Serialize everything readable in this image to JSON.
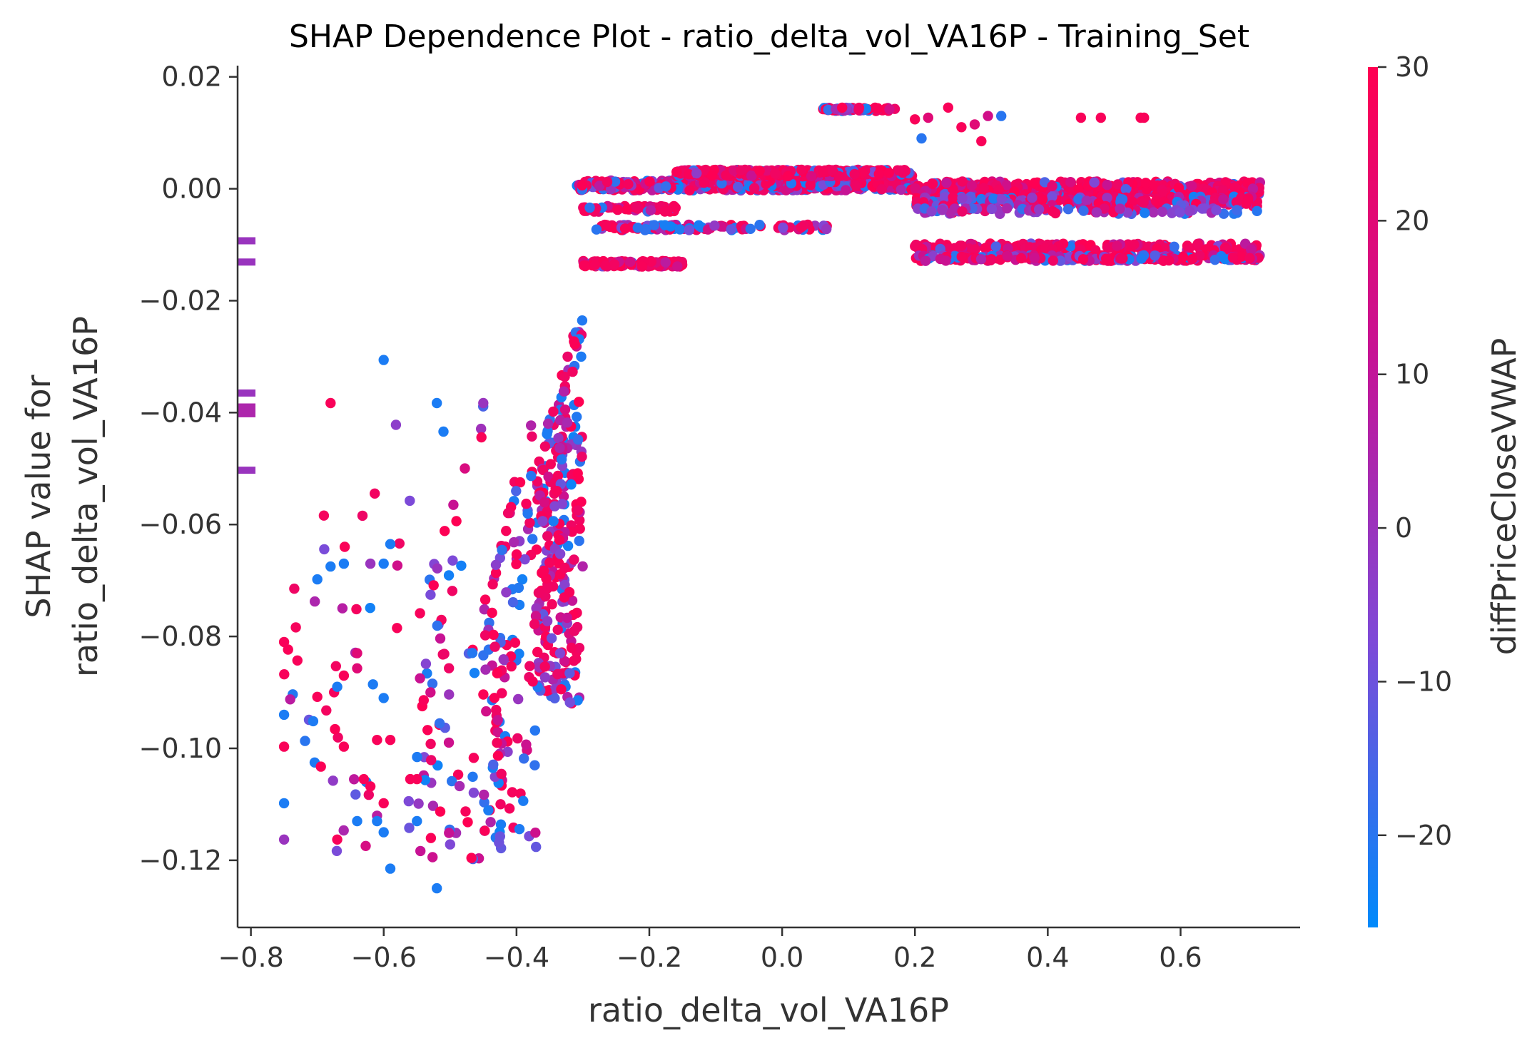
{
  "chart_data": {
    "type": "scatter",
    "title": "SHAP Dependence Plot - ratio_delta_vol_VA16P - Training_Set",
    "xlabel": "ratio_delta_vol_VA16P",
    "ylabel_lines": [
      "SHAP value for",
      "ratio_delta_vol_VA16P"
    ],
    "colorbar_label": "diffPriceCloseVWAP",
    "xlim": [
      -0.82,
      0.78
    ],
    "ylim": [
      -0.132,
      0.022
    ],
    "x_ticks": [
      -0.8,
      -0.6,
      -0.4,
      -0.2,
      0.0,
      0.2,
      0.4,
      0.6
    ],
    "x_tick_labels": [
      "−0.8",
      "−0.6",
      "−0.4",
      "−0.2",
      "0.0",
      "0.2",
      "0.4",
      "0.6"
    ],
    "y_ticks": [
      0.02,
      0.0,
      -0.02,
      -0.04,
      -0.06,
      -0.08,
      -0.1,
      -0.12
    ],
    "y_tick_labels": [
      "0.02",
      "0.00",
      "−0.02",
      "−0.04",
      "−0.06",
      "−0.08",
      "−0.10",
      "−0.12"
    ],
    "color_range": [
      -26,
      30
    ],
    "color_ticks": [
      30,
      20,
      10,
      0,
      -10,
      -20
    ],
    "color_tick_labels": [
      "30",
      "20",
      "10",
      "0",
      "−10",
      "−20"
    ],
    "colormap": [
      "#008afb",
      "#7d4ad8",
      "#c51396",
      "#ff0052"
    ],
    "nan_markers": [
      {
        "y": -0.0093,
        "color": 0
      },
      {
        "y": -0.0131,
        "color": 0
      },
      {
        "y": -0.0365,
        "color": 0
      },
      {
        "y": -0.039,
        "color": 5
      },
      {
        "y": -0.0402,
        "color": 5
      },
      {
        "y": -0.0503,
        "color": 0
      }
    ],
    "clusters": [
      {
        "x": [
          -0.31,
          0.2
        ],
        "y": 0.0006,
        "n": 520,
        "yspread": 0.0009,
        "colors": "mixed"
      },
      {
        "x": [
          -0.16,
          0.2
        ],
        "y": 0.0028,
        "n": 320,
        "yspread": 0.0006,
        "colors": "red"
      },
      {
        "x": [
          0.2,
          0.72
        ],
        "y": 0.0001,
        "n": 380,
        "yspread": 0.0012,
        "colors": "red"
      },
      {
        "x": [
          0.2,
          0.72
        ],
        "y": -0.0023,
        "n": 260,
        "yspread": 0.0009,
        "colors": "mixed"
      },
      {
        "x": [
          0.2,
          0.72
        ],
        "y": -0.004,
        "n": 80,
        "yspread": 0.0005,
        "colors": "purple"
      },
      {
        "x": [
          0.2,
          0.72
        ],
        "y": -0.0104,
        "n": 170,
        "yspread": 0.0006,
        "colors": "red"
      },
      {
        "x": [
          0.2,
          0.72
        ],
        "y": -0.0124,
        "n": 230,
        "yspread": 0.0005,
        "colors": "mixed"
      },
      {
        "x": [
          0.06,
          0.17
        ],
        "y": 0.0142,
        "n": 55,
        "yspread": 0.0003,
        "colors": "mixed"
      },
      {
        "x": [
          -0.3,
          -0.16
        ],
        "y": -0.0036,
        "n": 60,
        "yspread": 0.0005,
        "colors": "red"
      },
      {
        "x": [
          -0.28,
          0.07
        ],
        "y": -0.0069,
        "n": 110,
        "yspread": 0.0005,
        "colors": "mixed"
      },
      {
        "x": [
          -0.3,
          -0.15
        ],
        "y": -0.0134,
        "n": 110,
        "yspread": 0.0005,
        "colors": "red"
      },
      {
        "x": [
          -0.37,
          -0.3
        ],
        "y": [
          -0.092,
          -0.016
        ],
        "n": 260,
        "colors": "mixed"
      },
      {
        "x": [
          -0.45,
          -0.37
        ],
        "y": [
          -0.118,
          -0.036
        ],
        "n": 130,
        "colors": "mixed"
      },
      {
        "x": [
          -0.55,
          -0.45
        ],
        "y": [
          -0.12,
          -0.038
        ],
        "n": 70,
        "colors": "mixed"
      },
      {
        "x": [
          -0.76,
          -0.55
        ],
        "y": [
          -0.122,
          -0.03
        ],
        "n": 42,
        "colors": "mixed"
      }
    ],
    "points": [
      {
        "x": 0.25,
        "y": 0.0145,
        "c": 28
      },
      {
        "x": 0.31,
        "y": 0.013,
        "c": 15
      },
      {
        "x": 0.33,
        "y": 0.013,
        "c": -20
      },
      {
        "x": 0.27,
        "y": 0.011,
        "c": 28
      },
      {
        "x": 0.29,
        "y": 0.0115,
        "c": 20
      },
      {
        "x": 0.3,
        "y": 0.0085,
        "c": 28
      },
      {
        "x": 0.21,
        "y": 0.009,
        "c": -20
      },
      {
        "x": 0.45,
        "y": 0.0127,
        "c": 28
      },
      {
        "x": 0.48,
        "y": 0.0127,
        "c": 28
      },
      {
        "x": 0.54,
        "y": 0.0127,
        "c": 28
      },
      {
        "x": 0.545,
        "y": 0.0127,
        "c": 28
      },
      {
        "x": 0.2,
        "y": 0.0124,
        "c": 28
      },
      {
        "x": 0.22,
        "y": 0.0127,
        "c": 20
      },
      {
        "x": -0.6,
        "y": -0.0306,
        "c": -22
      },
      {
        "x": -0.68,
        "y": -0.0383,
        "c": 28
      },
      {
        "x": -0.52,
        "y": -0.0383,
        "c": -22
      },
      {
        "x": -0.45,
        "y": -0.0383,
        "c": 0
      },
      {
        "x": -0.51,
        "y": -0.0434,
        "c": -22
      },
      {
        "x": -0.7,
        "y": -0.0698,
        "c": -22
      },
      {
        "x": -0.68,
        "y": -0.0675,
        "c": -22
      },
      {
        "x": -0.66,
        "y": -0.067,
        "c": -22
      },
      {
        "x": -0.62,
        "y": -0.067,
        "c": 0
      },
      {
        "x": -0.6,
        "y": -0.067,
        "c": -22
      },
      {
        "x": -0.59,
        "y": -0.0635,
        "c": -22
      },
      {
        "x": -0.75,
        "y": -0.081,
        "c": 28
      },
      {
        "x": -0.73,
        "y": -0.0843,
        "c": 28
      },
      {
        "x": -0.75,
        "y": -0.094,
        "c": -22
      },
      {
        "x": -0.7,
        "y": -0.0908,
        "c": 28
      },
      {
        "x": -0.67,
        "y": -0.089,
        "c": -22
      },
      {
        "x": -0.66,
        "y": -0.087,
        "c": 28
      },
      {
        "x": -0.64,
        "y": -0.083,
        "c": 20
      },
      {
        "x": -0.64,
        "y": -0.0857,
        "c": 20
      },
      {
        "x": -0.58,
        "y": -0.0785,
        "c": 28
      },
      {
        "x": -0.75,
        "y": -0.0997,
        "c": 28
      },
      {
        "x": -0.66,
        "y": -0.0997,
        "c": 28
      },
      {
        "x": -0.61,
        "y": -0.0985,
        "c": 28
      },
      {
        "x": -0.59,
        "y": -0.0985,
        "c": 28
      },
      {
        "x": -0.6,
        "y": -0.091,
        "c": -22
      },
      {
        "x": -0.75,
        "y": -0.1098,
        "c": -22
      },
      {
        "x": -0.75,
        "y": -0.1163,
        "c": 0
      },
      {
        "x": -0.67,
        "y": -0.1163,
        "c": 28
      },
      {
        "x": -0.64,
        "y": -0.113,
        "c": -22
      },
      {
        "x": -0.63,
        "y": -0.1055,
        "c": 28
      },
      {
        "x": -0.62,
        "y": -0.1068,
        "c": 28
      },
      {
        "x": -0.61,
        "y": -0.113,
        "c": -22
      },
      {
        "x": -0.6,
        "y": -0.1098,
        "c": 28
      },
      {
        "x": -0.6,
        "y": -0.115,
        "c": -22
      },
      {
        "x": -0.59,
        "y": -0.1215,
        "c": -22
      },
      {
        "x": -0.52,
        "y": -0.125,
        "c": -22
      },
      {
        "x": -0.56,
        "y": -0.1055,
        "c": 28
      },
      {
        "x": -0.55,
        "y": -0.1055,
        "c": 28
      },
      {
        "x": -0.55,
        "y": -0.113,
        "c": -22
      }
    ]
  }
}
